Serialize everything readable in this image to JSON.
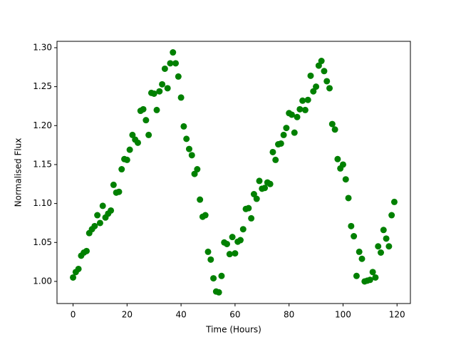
{
  "chart_data": {
    "type": "scatter",
    "xlabel": "Time (Hours)",
    "ylabel": "Normalised Flux",
    "color": "#008000",
    "xlim": [
      -5.95,
      124.95
    ],
    "ylim": [
      0.9716,
      1.3082
    ],
    "xticks": [
      0,
      20,
      40,
      60,
      80,
      100,
      120
    ],
    "yticks": [
      {
        "value": 1.0,
        "label": "1.00"
      },
      {
        "value": 1.05,
        "label": "1.05"
      },
      {
        "value": 1.1,
        "label": "1.10"
      },
      {
        "value": 1.15,
        "label": "1.15"
      },
      {
        "value": 1.2,
        "label": "1.20"
      },
      {
        "value": 1.25,
        "label": "1.25"
      },
      {
        "value": 1.3,
        "label": "1.30"
      }
    ],
    "grid": false,
    "x": [
      0,
      1,
      2,
      3,
      4,
      5,
      6,
      7,
      8,
      9,
      10,
      11,
      12,
      13,
      14,
      15,
      16,
      17,
      18,
      19,
      20,
      21,
      22,
      23,
      24,
      25,
      26,
      27,
      28,
      29,
      30,
      31,
      32,
      33,
      34,
      35,
      36,
      37,
      38,
      39,
      40,
      41,
      42,
      43,
      44,
      45,
      46,
      47,
      48,
      49,
      50,
      51,
      52,
      53,
      54,
      55,
      56,
      57,
      58,
      59,
      60,
      61,
      62,
      63,
      64,
      65,
      66,
      67,
      68,
      69,
      70,
      71,
      72,
      73,
      74,
      75,
      76,
      77,
      78,
      79,
      80,
      81,
      82,
      83,
      84,
      85,
      86,
      87,
      88,
      89,
      90,
      91,
      92,
      93,
      94,
      95,
      96,
      97,
      98,
      99,
      100,
      101,
      102,
      103,
      104,
      105,
      106,
      107,
      108,
      109,
      110,
      111,
      112,
      113,
      114,
      115,
      116,
      117,
      118,
      119
    ],
    "values": [
      1.005,
      1.012,
      1.016,
      1.033,
      1.037,
      1.039,
      1.062,
      1.067,
      1.071,
      1.085,
      1.075,
      1.097,
      1.082,
      1.087,
      1.091,
      1.124,
      1.114,
      1.115,
      1.144,
      1.157,
      1.156,
      1.169,
      1.188,
      1.182,
      1.178,
      1.219,
      1.221,
      1.207,
      1.188,
      1.242,
      1.241,
      1.22,
      1.244,
      1.253,
      1.273,
      1.248,
      1.28,
      1.294,
      1.28,
      1.263,
      1.236,
      1.199,
      1.183,
      1.17,
      1.162,
      1.138,
      1.144,
      1.105,
      1.083,
      1.085,
      1.038,
      1.028,
      1.004,
      0.987,
      0.986,
      1.007,
      1.05,
      1.048,
      1.035,
      1.057,
      1.036,
      1.051,
      1.053,
      1.067,
      1.093,
      1.094,
      1.081,
      1.112,
      1.106,
      1.129,
      1.119,
      1.12,
      1.127,
      1.125,
      1.166,
      1.156,
      1.176,
      1.177,
      1.188,
      1.197,
      1.216,
      1.214,
      1.191,
      1.211,
      1.221,
      1.232,
      1.22,
      1.233,
      1.264,
      1.244,
      1.25,
      1.277,
      1.283,
      1.27,
      1.257,
      1.248,
      1.202,
      1.195,
      1.157,
      1.145,
      1.15,
      1.131,
      1.107,
      1.071,
      1.058,
      1.007,
      1.038,
      1.029,
      1.0,
      1.001,
      1.002,
      1.012,
      1.005,
      1.045,
      1.037,
      1.066,
      1.055,
      1.045,
      1.085,
      1.102
    ]
  }
}
